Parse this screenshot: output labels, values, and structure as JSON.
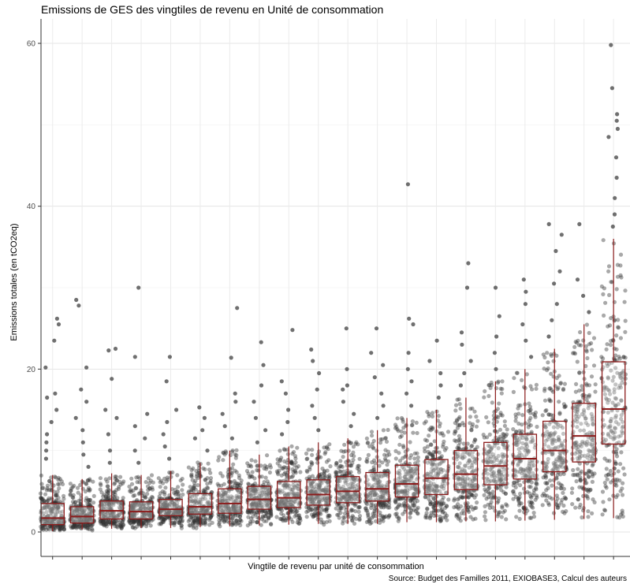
{
  "chart_data": {
    "type": "boxplot",
    "title": "Emissions de GES des vingtiles de revenu en Unité de consommation",
    "xlabel": "Vingtile de revenu par unité de consommation",
    "ylabel": "Emissions totales (en tCO2eq)",
    "caption": "Source: Budget des Familles 2011, EXIOBASE3, Calcul des auteurs",
    "ylim": [
      -3,
      63
    ],
    "y_ticks": [
      0,
      20,
      40,
      60
    ],
    "x_tick_labels": [],
    "grid": true,
    "overlay": "jittered raw points (semi-transparent grey)",
    "box_color": "#8b1a1a",
    "point_color": "#333333",
    "groups": [
      {
        "vingtile": 1,
        "min": 0.1,
        "q1": 0.9,
        "median": 1.7,
        "q3": 3.5,
        "max": 7.0,
        "outliers": [
          9,
          10,
          11,
          12,
          13.5,
          15,
          16.5,
          17,
          20.2,
          23.5,
          25.5,
          26.2
        ]
      },
      {
        "vingtile": 2,
        "min": 0.3,
        "q1": 1.1,
        "median": 1.9,
        "q3": 3.1,
        "max": 6.5,
        "outliers": [
          8,
          9.5,
          11,
          12.5,
          14,
          16,
          17.5,
          20.2,
          27.8,
          28.5
        ]
      },
      {
        "vingtile": 3,
        "min": 0.4,
        "q1": 1.6,
        "median": 2.6,
        "q3": 3.8,
        "max": 7.2,
        "outliers": [
          8.5,
          10,
          12,
          14,
          15,
          18.8,
          22.3,
          22.5
        ]
      },
      {
        "vingtile": 4,
        "min": 0.5,
        "q1": 1.6,
        "median": 2.5,
        "q3": 3.7,
        "max": 7.0,
        "outliers": [
          8.5,
          10,
          11.5,
          13,
          14.5,
          21.5,
          30.0
        ]
      },
      {
        "vingtile": 5,
        "min": 0.5,
        "q1": 2.0,
        "median": 2.8,
        "q3": 4.0,
        "max": 7.5,
        "outliers": [
          9,
          10.5,
          12,
          13.5,
          15,
          18.5,
          21.5
        ]
      },
      {
        "vingtile": 6,
        "min": 0.6,
        "q1": 2.2,
        "median": 3.1,
        "q3": 4.7,
        "max": 8.5,
        "outliers": [
          10,
          11.5,
          12.5,
          14,
          15.3
        ]
      },
      {
        "vingtile": 7,
        "min": 0.7,
        "q1": 2.3,
        "median": 3.5,
        "q3": 5.3,
        "max": 10.0,
        "outliers": [
          11.5,
          13,
          14.5,
          16,
          17,
          21.4,
          27.5
        ]
      },
      {
        "vingtile": 8,
        "min": 0.8,
        "q1": 2.8,
        "median": 4.0,
        "q3": 5.6,
        "max": 9.5,
        "outliers": [
          11,
          12.5,
          14,
          16,
          18,
          20.5,
          23.3
        ]
      },
      {
        "vingtile": 9,
        "min": 0.9,
        "q1": 3.0,
        "median": 4.2,
        "q3": 6.2,
        "max": 10.5,
        "outliers": [
          12,
          13.5,
          15,
          17,
          18.5,
          24.8
        ]
      },
      {
        "vingtile": 10,
        "min": 1.0,
        "q1": 3.3,
        "median": 4.6,
        "q3": 6.4,
        "max": 11.0,
        "outliers": [
          12.5,
          14,
          15.5,
          17.5,
          19.5,
          21,
          22.4
        ]
      },
      {
        "vingtile": 11,
        "min": 1.0,
        "q1": 3.6,
        "median": 5.0,
        "q3": 6.8,
        "max": 11.5,
        "outliers": [
          13,
          14.5,
          16,
          17.5,
          18,
          20,
          25.0
        ]
      },
      {
        "vingtile": 12,
        "min": 1.0,
        "q1": 3.8,
        "median": 5.3,
        "q3": 7.3,
        "max": 12.5,
        "outliers": [
          14,
          15.5,
          17,
          19,
          20.5,
          22,
          25.0
        ]
      },
      {
        "vingtile": 13,
        "min": 1.2,
        "q1": 4.3,
        "median": 5.9,
        "q3": 8.2,
        "max": 14.0,
        "outliers": [
          15.5,
          17,
          18.5,
          20,
          22,
          25.5,
          26.2,
          42.7
        ]
      },
      {
        "vingtile": 14,
        "min": 1.2,
        "q1": 4.6,
        "median": 6.6,
        "q3": 8.9,
        "max": 15.0,
        "outliers": [
          16.5,
          18,
          19.5,
          21,
          23.5
        ]
      },
      {
        "vingtile": 15,
        "min": 1.3,
        "q1": 5.2,
        "median": 7.1,
        "q3": 10.0,
        "max": 16.5,
        "outliers": [
          18,
          19.5,
          21,
          23,
          24.5,
          30.0,
          33.0
        ]
      },
      {
        "vingtile": 16,
        "min": 1.3,
        "q1": 5.8,
        "median": 8.1,
        "q3": 11.0,
        "max": 18.5,
        "outliers": [
          20,
          22,
          24,
          26.5,
          30.0
        ]
      },
      {
        "vingtile": 17,
        "min": 1.4,
        "q1": 6.5,
        "median": 9.0,
        "q3": 12.0,
        "max": 20.0,
        "outliers": [
          21.5,
          23.5,
          25.5,
          28,
          29.5,
          31.0
        ]
      },
      {
        "vingtile": 18,
        "min": 1.5,
        "q1": 7.4,
        "median": 10.0,
        "q3": 13.6,
        "max": 22.5,
        "outliers": [
          24,
          26,
          28,
          30.5,
          32,
          34.5,
          36.5,
          37.8
        ]
      },
      {
        "vingtile": 19,
        "min": 1.6,
        "q1": 8.6,
        "median": 11.8,
        "q3": 15.8,
        "max": 25.5,
        "outliers": [
          27,
          29,
          31,
          37.8
        ]
      },
      {
        "vingtile": 20,
        "min": 1.7,
        "q1": 10.8,
        "median": 15.1,
        "q3": 20.9,
        "max": 36.0,
        "outliers": [
          37.5,
          39,
          41,
          43.5,
          46,
          48.5,
          49.5,
          50.5,
          51.3,
          54.5,
          59.8
        ]
      }
    ]
  }
}
